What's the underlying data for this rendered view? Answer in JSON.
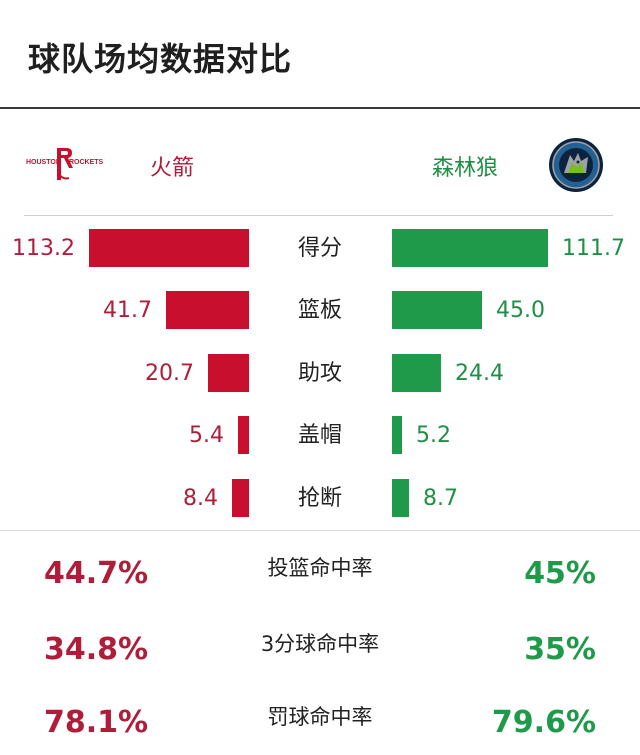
{
  "header": {
    "title": "球队场均数据对比"
  },
  "teams": {
    "home": {
      "name": "火箭",
      "color": "#c8102e",
      "logo_text": [
        "HOUSTON",
        "ROCKETS"
      ],
      "logo_icon": "rockets-logo-icon"
    },
    "away": {
      "name": "森林狼",
      "color": "#1e9a4a",
      "logo_icon": "timberwolves-logo-icon"
    }
  },
  "stats": [
    {
      "label": "得分",
      "home": "113.2",
      "away": "111.7",
      "home_value": 113.2,
      "away_value": 111.7
    },
    {
      "label": "篮板",
      "home": "41.7",
      "away": "45.0",
      "home_value": 41.7,
      "away_value": 45.0
    },
    {
      "label": "助攻",
      "home": "20.7",
      "away": "24.4",
      "home_value": 20.7,
      "away_value": 24.4
    },
    {
      "label": "盖帽",
      "home": "5.4",
      "away": "5.2",
      "home_value": 5.4,
      "away_value": 5.2
    },
    {
      "label": "抢断",
      "home": "8.4",
      "away": "8.7",
      "home_value": 8.4,
      "away_value": 8.7
    }
  ],
  "percentages": [
    {
      "label": "投篮命中率",
      "home": "44.7%",
      "away": "45%"
    },
    {
      "label": "3分球命中率",
      "home": "34.8%",
      "away": "35%"
    },
    {
      "label": "罚球命中率",
      "home": "78.1%",
      "away": "79.6%"
    }
  ]
}
